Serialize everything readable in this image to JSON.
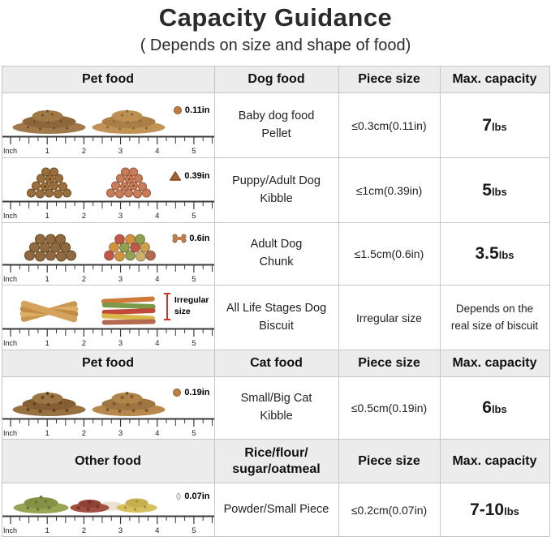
{
  "title": "Capacity Guidance",
  "subtitle": "( Depends on size and shape of food)",
  "ruler": {
    "unit": "Inch",
    "marks": [
      "1",
      "2",
      "3",
      "4",
      "5"
    ]
  },
  "table": {
    "headers": [
      {
        "food_group": "Pet food",
        "food_category": "Dog food",
        "piece_size": "Piece size",
        "max_capacity": "Max. capacity"
      },
      {
        "food_group": "Pet food",
        "food_category": "Cat food",
        "piece_size": "Piece size",
        "max_capacity": "Max. capacity"
      },
      {
        "food_group": "Other food",
        "food_category_lines": [
          "Rice/flour/",
          "sugar/oatmeal"
        ],
        "piece_size": "Piece size",
        "max_capacity": "Max. capacity"
      }
    ],
    "rows": [
      {
        "icon": "pellet-icon",
        "size_label": "0.11in",
        "food_lines": [
          "Baby dog food",
          "Pellet"
        ],
        "piece_size": "≤0.3cm(0.11in)",
        "capacity_value": "7",
        "capacity_unit": "lbs"
      },
      {
        "icon": "kibble-triangle-icon",
        "size_label": "0.39in",
        "food_lines": [
          "Puppy/Adult Dog",
          "Kibble"
        ],
        "piece_size": "≤1cm(0.39in)",
        "capacity_value": "5",
        "capacity_unit": "lbs"
      },
      {
        "icon": "bone-icon",
        "size_label": "0.6in",
        "food_lines": [
          "Adult Dog",
          "Chunk"
        ],
        "piece_size": "≤1.5cm(0.6in)",
        "capacity_value": "3.5",
        "capacity_unit": "lbs"
      },
      {
        "icon": "irregular-marker-icon",
        "size_label_lines": [
          "Irregular",
          "size"
        ],
        "food_lines": [
          "All Life Stages Dog",
          "Biscuit"
        ],
        "piece_size": "Irregular size",
        "capacity_note": [
          "Depends on the",
          "real size of biscuit"
        ]
      },
      {
        "icon": "pellet-icon",
        "size_label": "0.19in",
        "food_lines": [
          "Small/Big Cat",
          "Kibble"
        ],
        "piece_size": "≤0.5cm(0.19in)",
        "capacity_value": "6",
        "capacity_unit": "lbs"
      },
      {
        "icon": "grain-icon",
        "size_label": "0.07in",
        "food_lines": [
          "Powder/Small Piece"
        ],
        "piece_size": "≤0.2cm(0.07in)",
        "capacity_value": "7-10",
        "capacity_unit": "lbs"
      }
    ]
  }
}
